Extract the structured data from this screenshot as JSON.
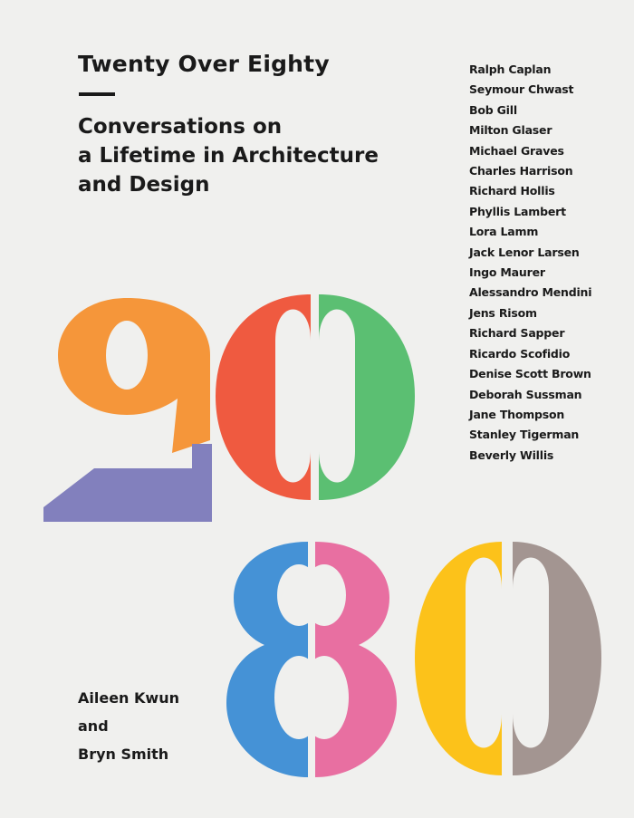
{
  "cover": {
    "title": "Twenty Over Eighty",
    "subtitle_lines": [
      "Conversations on",
      "a Lifetime in Architecture",
      "and Design"
    ],
    "contributors": [
      "Ralph Caplan",
      "Seymour Chwast",
      "Bob Gill",
      "Milton Glaser",
      "Michael Graves",
      "Charles Harrison",
      "Richard Hollis",
      "Phyllis Lambert",
      "Lora Lamm",
      "Jack Lenor Larsen",
      "Ingo Maurer",
      "Alessandro Mendini",
      "Jens Risom",
      "Richard Sapper",
      "Ricardo Scofidio",
      "Denise Scott Brown",
      "Deborah Sussman",
      "Jane Thompson",
      "Stanley Tigerman",
      "Beverly Willis"
    ],
    "authors": [
      "Aileen Kwun",
      "and",
      "Bryn Smith"
    ]
  },
  "palette": {
    "background": "#f0f0ee",
    "text": "#1a1a1a",
    "orange": "#f5963a",
    "purple": "#8280bd",
    "red": "#ef5a40",
    "green": "#5bbf72",
    "blue": "#4592d6",
    "pink": "#e86fa1",
    "yellow": "#fcc21a",
    "taupe": "#a39591"
  }
}
